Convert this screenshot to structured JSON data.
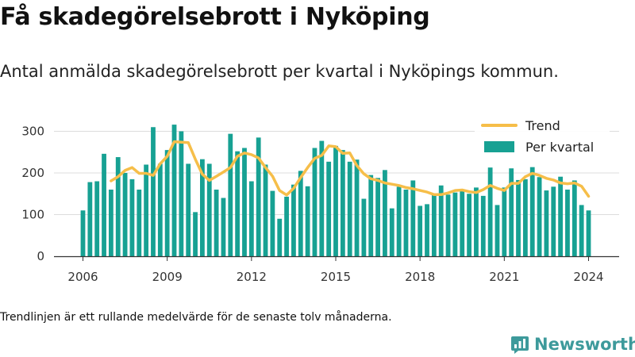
{
  "title": "Få skadegörelsebrott i Nyköping",
  "subtitle": "Antal anmälda skadegörelsebrott per kvartal i Nyköpings kommun.",
  "footnote": "Trendlinjen är ett rullande medelvärde för de senaste tolv månaderna.",
  "brand": "Newsworthy",
  "colors": {
    "bars": "#17a193",
    "trend": "#f6be49",
    "grid": "#dddddd",
    "axis": "#333333",
    "brand": "#3d9a9b"
  },
  "chart_data": {
    "type": "bar",
    "title": "",
    "xlabel": "",
    "ylabel": "",
    "ylim": [
      0,
      340
    ],
    "yticks": [
      0,
      100,
      200,
      300
    ],
    "xticks": [
      "2006",
      "2009",
      "2012",
      "2015",
      "2018",
      "2021",
      "2024"
    ],
    "grid": true,
    "legend_position": "top-right",
    "categories": [
      "2006 Q1",
      "2006 Q2",
      "2006 Q3",
      "2006 Q4",
      "2007 Q1",
      "2007 Q2",
      "2007 Q3",
      "2007 Q4",
      "2008 Q1",
      "2008 Q2",
      "2008 Q3",
      "2008 Q4",
      "2009 Q1",
      "2009 Q2",
      "2009 Q3",
      "2009 Q4",
      "2010 Q1",
      "2010 Q2",
      "2010 Q3",
      "2010 Q4",
      "2011 Q1",
      "2011 Q2",
      "2011 Q3",
      "2011 Q4",
      "2012 Q1",
      "2012 Q2",
      "2012 Q3",
      "2012 Q4",
      "2013 Q1",
      "2013 Q2",
      "2013 Q3",
      "2013 Q4",
      "2014 Q1",
      "2014 Q2",
      "2014 Q3",
      "2014 Q4",
      "2015 Q1",
      "2015 Q2",
      "2015 Q3",
      "2015 Q4",
      "2016 Q1",
      "2016 Q2",
      "2016 Q3",
      "2016 Q4",
      "2017 Q1",
      "2017 Q2",
      "2017 Q3",
      "2017 Q4",
      "2018 Q1",
      "2018 Q2",
      "2018 Q3",
      "2018 Q4",
      "2019 Q1",
      "2019 Q2",
      "2019 Q3",
      "2019 Q4",
      "2020 Q1",
      "2020 Q2",
      "2020 Q3",
      "2020 Q4",
      "2021 Q1",
      "2021 Q2",
      "2021 Q3",
      "2021 Q4",
      "2022 Q1",
      "2022 Q2",
      "2022 Q3",
      "2022 Q4",
      "2023 Q1",
      "2023 Q2",
      "2023 Q3",
      "2023 Q4",
      "2024 Q1"
    ],
    "series": [
      {
        "name": "Per kvartal",
        "type": "bar",
        "values": [
          110,
          178,
          180,
          246,
          160,
          238,
          200,
          185,
          160,
          220,
          310,
          222,
          255,
          316,
          300,
          222,
          106,
          233,
          222,
          160,
          140,
          294,
          252,
          260,
          180,
          285,
          220,
          157,
          90,
          143,
          172,
          205,
          168,
          260,
          277,
          227,
          265,
          255,
          227,
          232,
          138,
          195,
          188,
          207,
          115,
          167,
          160,
          182,
          121,
          125,
          148,
          170,
          148,
          153,
          160,
          150,
          165,
          145,
          213,
          123,
          165,
          211,
          183,
          185,
          214,
          190,
          158,
          167,
          191,
          160,
          182,
          123,
          110
        ]
      },
      {
        "name": "Trend",
        "type": "line",
        "values": [
          null,
          null,
          null,
          null,
          181,
          191,
          206,
          213,
          199,
          199,
          194,
          222,
          240,
          275,
          274,
          273,
          233,
          197,
          182,
          192,
          202,
          213,
          240,
          248,
          244,
          236,
          213,
          192,
          158,
          147,
          163,
          189,
          213,
          235,
          242,
          265,
          263,
          247,
          248,
          218,
          198,
          186,
          182,
          176,
          173,
          170,
          165,
          162,
          158,
          154,
          148,
          148,
          152,
          158,
          159,
          155,
          153,
          160,
          170,
          163,
          158,
          175,
          175,
          191,
          199,
          194,
          187,
          183,
          176,
          174,
          176,
          168,
          144
        ]
      }
    ]
  }
}
